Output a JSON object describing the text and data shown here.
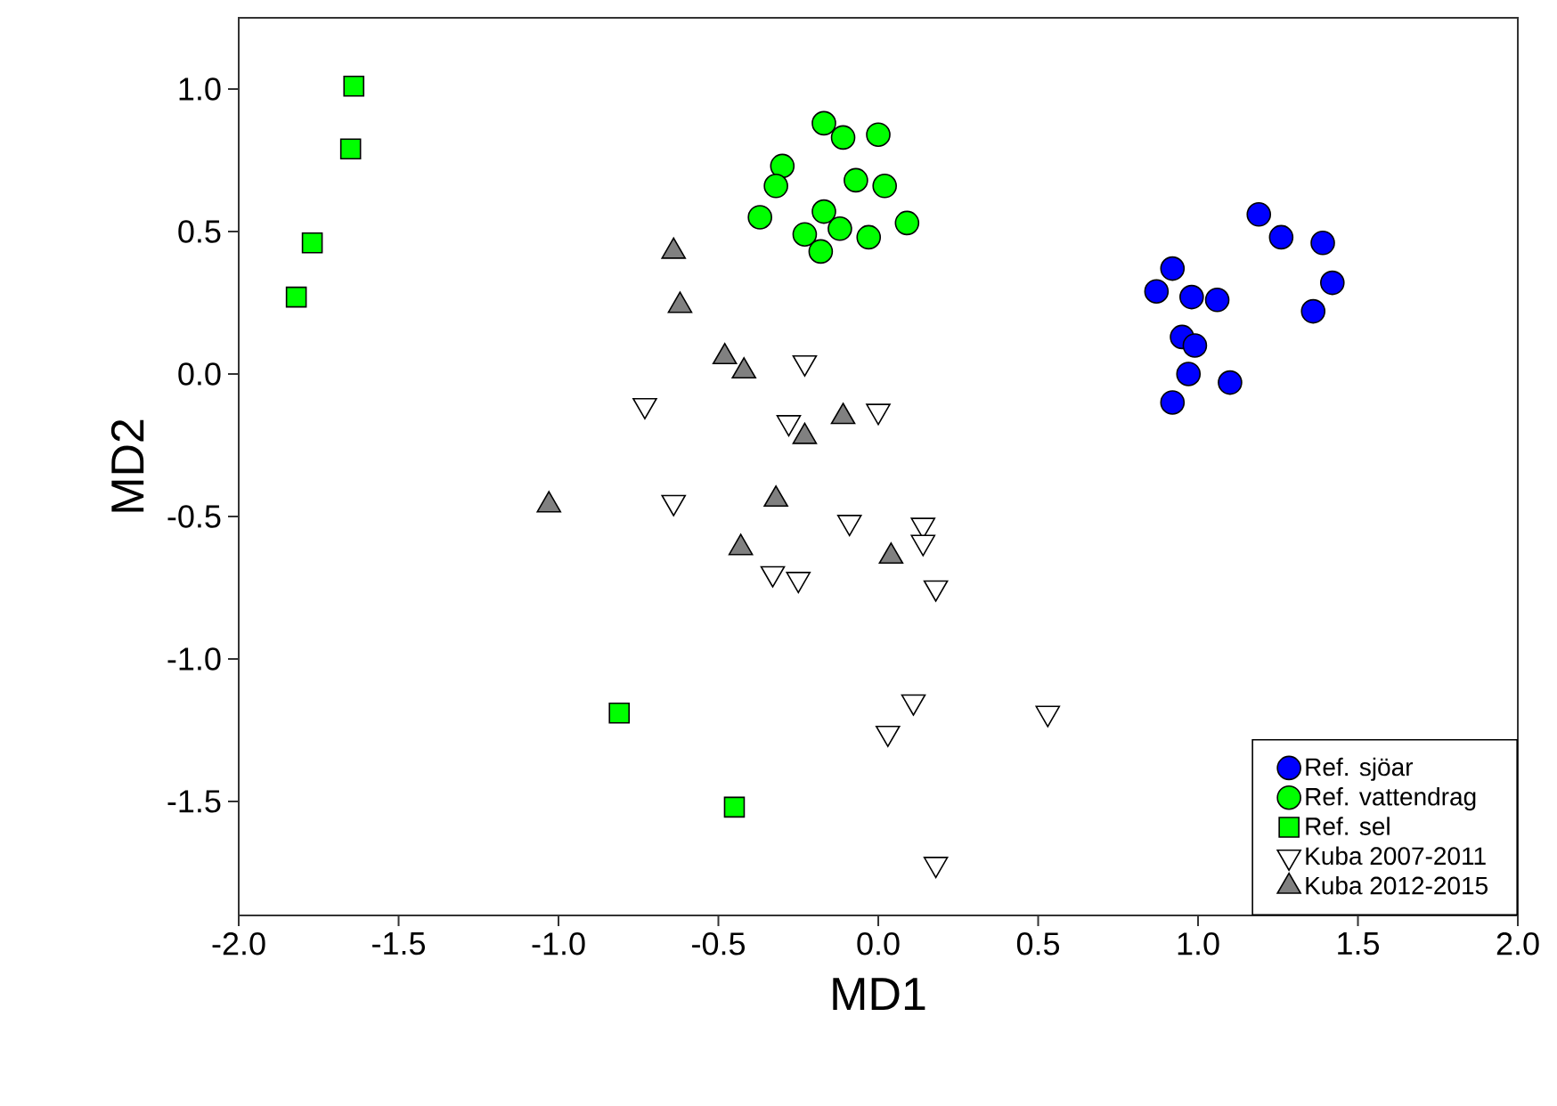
{
  "chart_data": {
    "type": "scatter",
    "xlabel": "MD1",
    "ylabel": "MD2",
    "xlim": [
      -2,
      2
    ],
    "ylim": [
      -1.9,
      1.25
    ],
    "xticks": [
      {
        "value": -2,
        "label": "-2.0"
      },
      {
        "value": -1.5,
        "label": "-1.5"
      },
      {
        "value": -1,
        "label": "-1.0"
      },
      {
        "value": -0.5,
        "label": "-0.5"
      },
      {
        "value": 0,
        "label": "0.0"
      },
      {
        "value": 0.5,
        "label": "0.5"
      },
      {
        "value": 1,
        "label": "1.0"
      },
      {
        "value": 1.5,
        "label": "1.5"
      },
      {
        "value": 2,
        "label": "2.0"
      }
    ],
    "yticks": [
      {
        "value": -1.5,
        "label": "-1.5"
      },
      {
        "value": -1,
        "label": "-1.0"
      },
      {
        "value": -0.5,
        "label": "-0.5"
      },
      {
        "value": 0,
        "label": "0.0"
      },
      {
        "value": 0.5,
        "label": "0.5"
      },
      {
        "value": 1,
        "label": "1.0"
      }
    ],
    "grid": false,
    "legend": "bottom right",
    "series": [
      {
        "name": "Ref.  sjöar",
        "color": "#0000ff",
        "marker": "circle",
        "x": [
          1.19,
          1.26,
          1.39,
          1.42,
          1.36,
          0.92,
          0.87,
          0.98,
          1.06,
          0.95,
          0.99,
          0.97,
          1.1,
          0.92
        ],
        "values": [
          0.56,
          0.48,
          0.46,
          0.32,
          0.22,
          0.37,
          0.29,
          0.27,
          0.26,
          0.13,
          0.1,
          0.0,
          -0.03,
          -0.1
        ]
      },
      {
        "name": "Ref. vattendrag",
        "color": "#00ff00",
        "marker": "circle",
        "x": [
          -0.17,
          -0.11,
          0.0,
          -0.3,
          -0.32,
          -0.07,
          0.02,
          -0.37,
          -0.17,
          -0.12,
          -0.23,
          -0.18,
          -0.03,
          0.09
        ],
        "values": [
          0.88,
          0.83,
          0.84,
          0.73,
          0.66,
          0.68,
          0.66,
          0.55,
          0.57,
          0.51,
          0.49,
          0.43,
          0.48,
          0.53
        ]
      },
      {
        "name": "Ref. sel",
        "color": "#00ff00",
        "marker": "square",
        "x": [
          -1.64,
          -1.65,
          -1.77,
          -1.82,
          -0.81,
          -0.45
        ],
        "values": [
          1.01,
          0.79,
          0.46,
          0.27,
          -1.19,
          -1.52
        ]
      },
      {
        "name": "Kuba 2007-2011",
        "color": "#ffffff",
        "marker": "triangle-down",
        "x": [
          -0.23,
          -0.73,
          -0.28,
          0.0,
          -0.64,
          -0.09,
          0.14,
          0.14,
          -0.33,
          -0.25,
          0.18,
          0.11,
          0.03,
          0.53,
          0.18
        ],
        "values": [
          0.04,
          -0.11,
          -0.17,
          -0.13,
          -0.45,
          -0.52,
          -0.53,
          -0.59,
          -0.7,
          -0.72,
          -0.75,
          -1.15,
          -1.26,
          -1.19,
          -1.72
        ]
      },
      {
        "name": "Kuba 2012-2015",
        "color": "#808080",
        "marker": "triangle",
        "x": [
          -0.64,
          -0.62,
          -0.48,
          -0.42,
          -0.11,
          -0.23,
          -1.03,
          -0.32,
          -0.43,
          0.04
        ],
        "values": [
          0.43,
          0.24,
          0.06,
          0.01,
          -0.15,
          -0.22,
          -0.46,
          -0.44,
          -0.61,
          -0.64
        ]
      }
    ]
  }
}
